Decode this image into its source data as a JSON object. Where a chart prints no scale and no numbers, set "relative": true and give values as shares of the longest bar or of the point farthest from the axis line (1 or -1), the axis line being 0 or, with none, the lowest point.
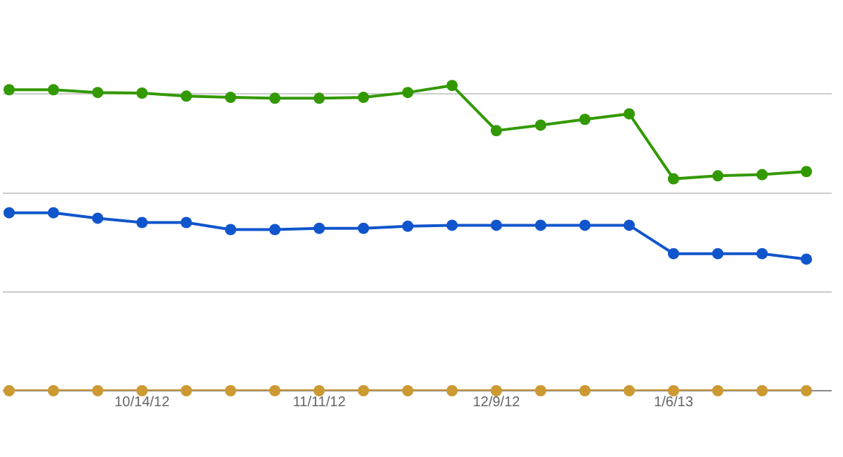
{
  "chart_data": {
    "type": "line",
    "relative": true,
    "grid": "y",
    "marker": "circle",
    "line_style": "solid",
    "x": [
      "2012-09-23",
      "2012-09-30",
      "2012-10-07",
      "2012-10-14",
      "2012-10-21",
      "2012-10-28",
      "2012-11-04",
      "2012-11-11",
      "2012-11-18",
      "2012-11-25",
      "2012-12-02",
      "2012-12-09",
      "2012-12-16",
      "2012-12-23",
      "2012-12-30",
      "2013-01-06",
      "2013-01-13",
      "2013-01-20",
      "2013-01-27"
    ],
    "xlim": [
      "2012-09-22",
      "2013-01-31"
    ],
    "xticks": [
      {
        "value": "2012-10-14",
        "label": "10/14/12"
      },
      {
        "value": "2012-11-11",
        "label": "11/11/12"
      },
      {
        "value": "2012-12-09",
        "label": "12/9/12"
      },
      {
        "value": "2013-01-06",
        "label": "1/6/13"
      }
    ],
    "series": [
      {
        "color": "#339900",
        "values": [
          0.986,
          0.986,
          0.977,
          0.975,
          0.965,
          0.961,
          0.958,
          0.958,
          0.961,
          0.977,
          1,
          0.852,
          0.87,
          0.889,
          0.907,
          0.694,
          0.704,
          0.708,
          0.718
        ]
      },
      {
        "color": "#1155cc",
        "values": [
          0.583,
          0.583,
          0.565,
          0.551,
          0.551,
          0.528,
          0.528,
          0.532,
          0.532,
          0.539,
          0.542,
          0.542,
          0.542,
          0.542,
          0.542,
          0.449,
          0.449,
          0.449,
          0.431
        ]
      },
      {
        "color": "#cc9933",
        "values": [
          0,
          0,
          0,
          0,
          0,
          0,
          0,
          0,
          0,
          0,
          0,
          0,
          0,
          0,
          0,
          0,
          0,
          0,
          0
        ]
      }
    ]
  }
}
